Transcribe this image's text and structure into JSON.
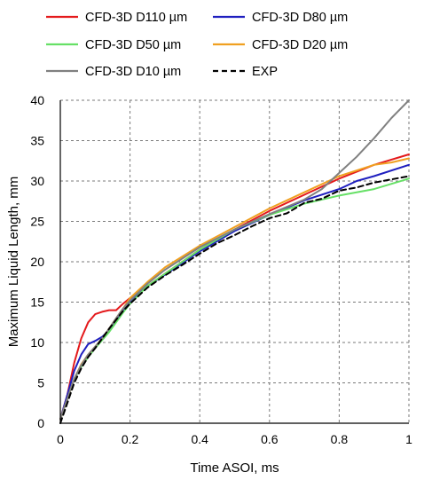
{
  "chart_data": {
    "type": "line",
    "title": "",
    "xlabel": "Time ASOI, ms",
    "ylabel": "Maximum Liquid Length, mm",
    "xlim": [
      0,
      1
    ],
    "ylim": [
      0,
      40
    ],
    "xticks": [
      0,
      0.2,
      0.4,
      0.6,
      0.8,
      1
    ],
    "xtick_labels": [
      "0",
      "0.2",
      "0.4",
      "0.6",
      "0.8",
      "1"
    ],
    "yticks": [
      0,
      5,
      10,
      15,
      20,
      25,
      30,
      35,
      40
    ],
    "ytick_labels": [
      "0",
      "5",
      "10",
      "15",
      "20",
      "25",
      "30",
      "35",
      "40"
    ],
    "grid": true,
    "grid_style": "dashed",
    "legend_position": "top",
    "series": [
      {
        "name": "CFD-3D D110 µm",
        "color": "#e41a1c",
        "dash": "solid",
        "x": [
          0,
          0.02,
          0.04,
          0.06,
          0.08,
          0.1,
          0.12,
          0.14,
          0.16,
          0.18,
          0.2,
          0.25,
          0.3,
          0.4,
          0.5,
          0.6,
          0.7,
          0.8,
          0.9,
          1.0
        ],
        "y": [
          0.5,
          3.5,
          7.5,
          10.5,
          12.5,
          13.5,
          13.8,
          14.0,
          14.0,
          14.8,
          15.5,
          17.0,
          18.5,
          21.5,
          24.0,
          26.3,
          28.3,
          30.3,
          32.0,
          33.3
        ]
      },
      {
        "name": "CFD-3D D80 µm",
        "color": "#1f1fbf",
        "dash": "solid",
        "x": [
          0,
          0.02,
          0.04,
          0.06,
          0.08,
          0.1,
          0.12,
          0.14,
          0.16,
          0.18,
          0.2,
          0.25,
          0.3,
          0.4,
          0.5,
          0.6,
          0.7,
          0.8,
          0.85,
          0.9,
          1.0
        ],
        "y": [
          0.5,
          3.5,
          6.5,
          8.5,
          9.8,
          10.2,
          10.7,
          11.5,
          12.8,
          14.0,
          15.0,
          17.0,
          18.4,
          21.3,
          23.8,
          25.8,
          27.6,
          29.0,
          30.0,
          30.6,
          32.0
        ]
      },
      {
        "name": "CFD-3D D50 µm",
        "color": "#66e066",
        "dash": "solid",
        "x": [
          0,
          0.02,
          0.04,
          0.06,
          0.08,
          0.1,
          0.12,
          0.14,
          0.16,
          0.18,
          0.2,
          0.25,
          0.3,
          0.4,
          0.5,
          0.6,
          0.7,
          0.8,
          0.9,
          1.0
        ],
        "y": [
          0.5,
          3.0,
          5.5,
          7.0,
          8.2,
          9.3,
          10.3,
          11.3,
          12.5,
          13.7,
          14.8,
          17.0,
          18.5,
          21.5,
          24.0,
          25.8,
          27.2,
          28.2,
          29.0,
          30.3
        ]
      },
      {
        "name": "CFD-3D D20 µm",
        "color": "#f0a020",
        "dash": "solid",
        "x": [
          0,
          0.02,
          0.04,
          0.06,
          0.08,
          0.1,
          0.12,
          0.14,
          0.16,
          0.18,
          0.2,
          0.25,
          0.3,
          0.4,
          0.5,
          0.6,
          0.7,
          0.8,
          0.9,
          0.95,
          1.0
        ],
        "y": [
          0.5,
          3.0,
          5.5,
          7.3,
          8.5,
          9.5,
          10.5,
          11.7,
          13.0,
          14.2,
          15.5,
          17.5,
          19.3,
          22.0,
          24.3,
          26.6,
          28.6,
          30.6,
          32.0,
          32.3,
          32.8
        ]
      },
      {
        "name": "CFD-3D D10 µm",
        "color": "#808080",
        "dash": "solid",
        "x": [
          0,
          0.02,
          0.04,
          0.06,
          0.08,
          0.1,
          0.12,
          0.14,
          0.16,
          0.18,
          0.2,
          0.25,
          0.3,
          0.4,
          0.5,
          0.6,
          0.7,
          0.75,
          0.8,
          0.85,
          0.9,
          0.95,
          1.0
        ],
        "y": [
          0.5,
          3.0,
          5.5,
          7.2,
          8.5,
          9.5,
          10.5,
          11.7,
          13.0,
          14.2,
          15.2,
          17.3,
          19.0,
          21.8,
          24.0,
          25.9,
          27.7,
          29.0,
          31.0,
          33.0,
          35.3,
          37.8,
          40.0
        ]
      },
      {
        "name": "EXP",
        "color": "#000000",
        "dash": "dashed",
        "x": [
          0,
          0.02,
          0.04,
          0.06,
          0.08,
          0.1,
          0.12,
          0.14,
          0.16,
          0.18,
          0.2,
          0.25,
          0.3,
          0.35,
          0.4,
          0.45,
          0.5,
          0.55,
          0.6,
          0.65,
          0.7,
          0.75,
          0.8,
          0.85,
          0.9,
          0.95,
          1.0
        ],
        "y": [
          0,
          2.5,
          5.0,
          6.8,
          8.2,
          9.3,
          10.5,
          11.7,
          12.8,
          13.9,
          14.8,
          16.8,
          18.3,
          19.6,
          21.0,
          22.3,
          23.3,
          24.4,
          25.4,
          26.0,
          27.3,
          27.8,
          28.8,
          29.2,
          29.8,
          30.2,
          30.6
        ]
      }
    ]
  }
}
